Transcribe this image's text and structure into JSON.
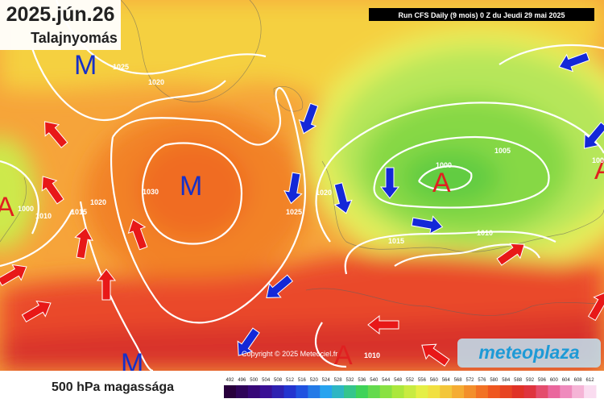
{
  "header": {
    "date": "2025.jún.26",
    "subtitle": "Talajnyomás",
    "run_info": "Run CFS Daily (9 mois) 0 Z du Jeudi 29 mai 2025"
  },
  "pressure_centers": [
    "M",
    "M",
    "M",
    "A",
    "A",
    "A",
    "A"
  ],
  "isobar_labels": [
    "1025",
    "1020",
    "1030",
    "1000",
    "1010",
    "1015",
    "1020",
    "1025",
    "1020",
    "1015",
    "1000",
    "1005",
    "1010",
    "1010",
    "100"
  ],
  "footer": {
    "caption": "500 hPa magassága",
    "copyright": "Copyright © 2025 Meteociel.fr",
    "logo": "meteoplaza",
    "legend_labels": [
      "492",
      "496",
      "500",
      "504",
      "508",
      "512",
      "516",
      "520",
      "524",
      "528",
      "532",
      "536",
      "540",
      "544",
      "548",
      "552",
      "556",
      "560",
      "564",
      "568",
      "572",
      "576",
      "580",
      "584",
      "588",
      "592",
      "596",
      "600",
      "604",
      "608",
      "612"
    ]
  }
}
